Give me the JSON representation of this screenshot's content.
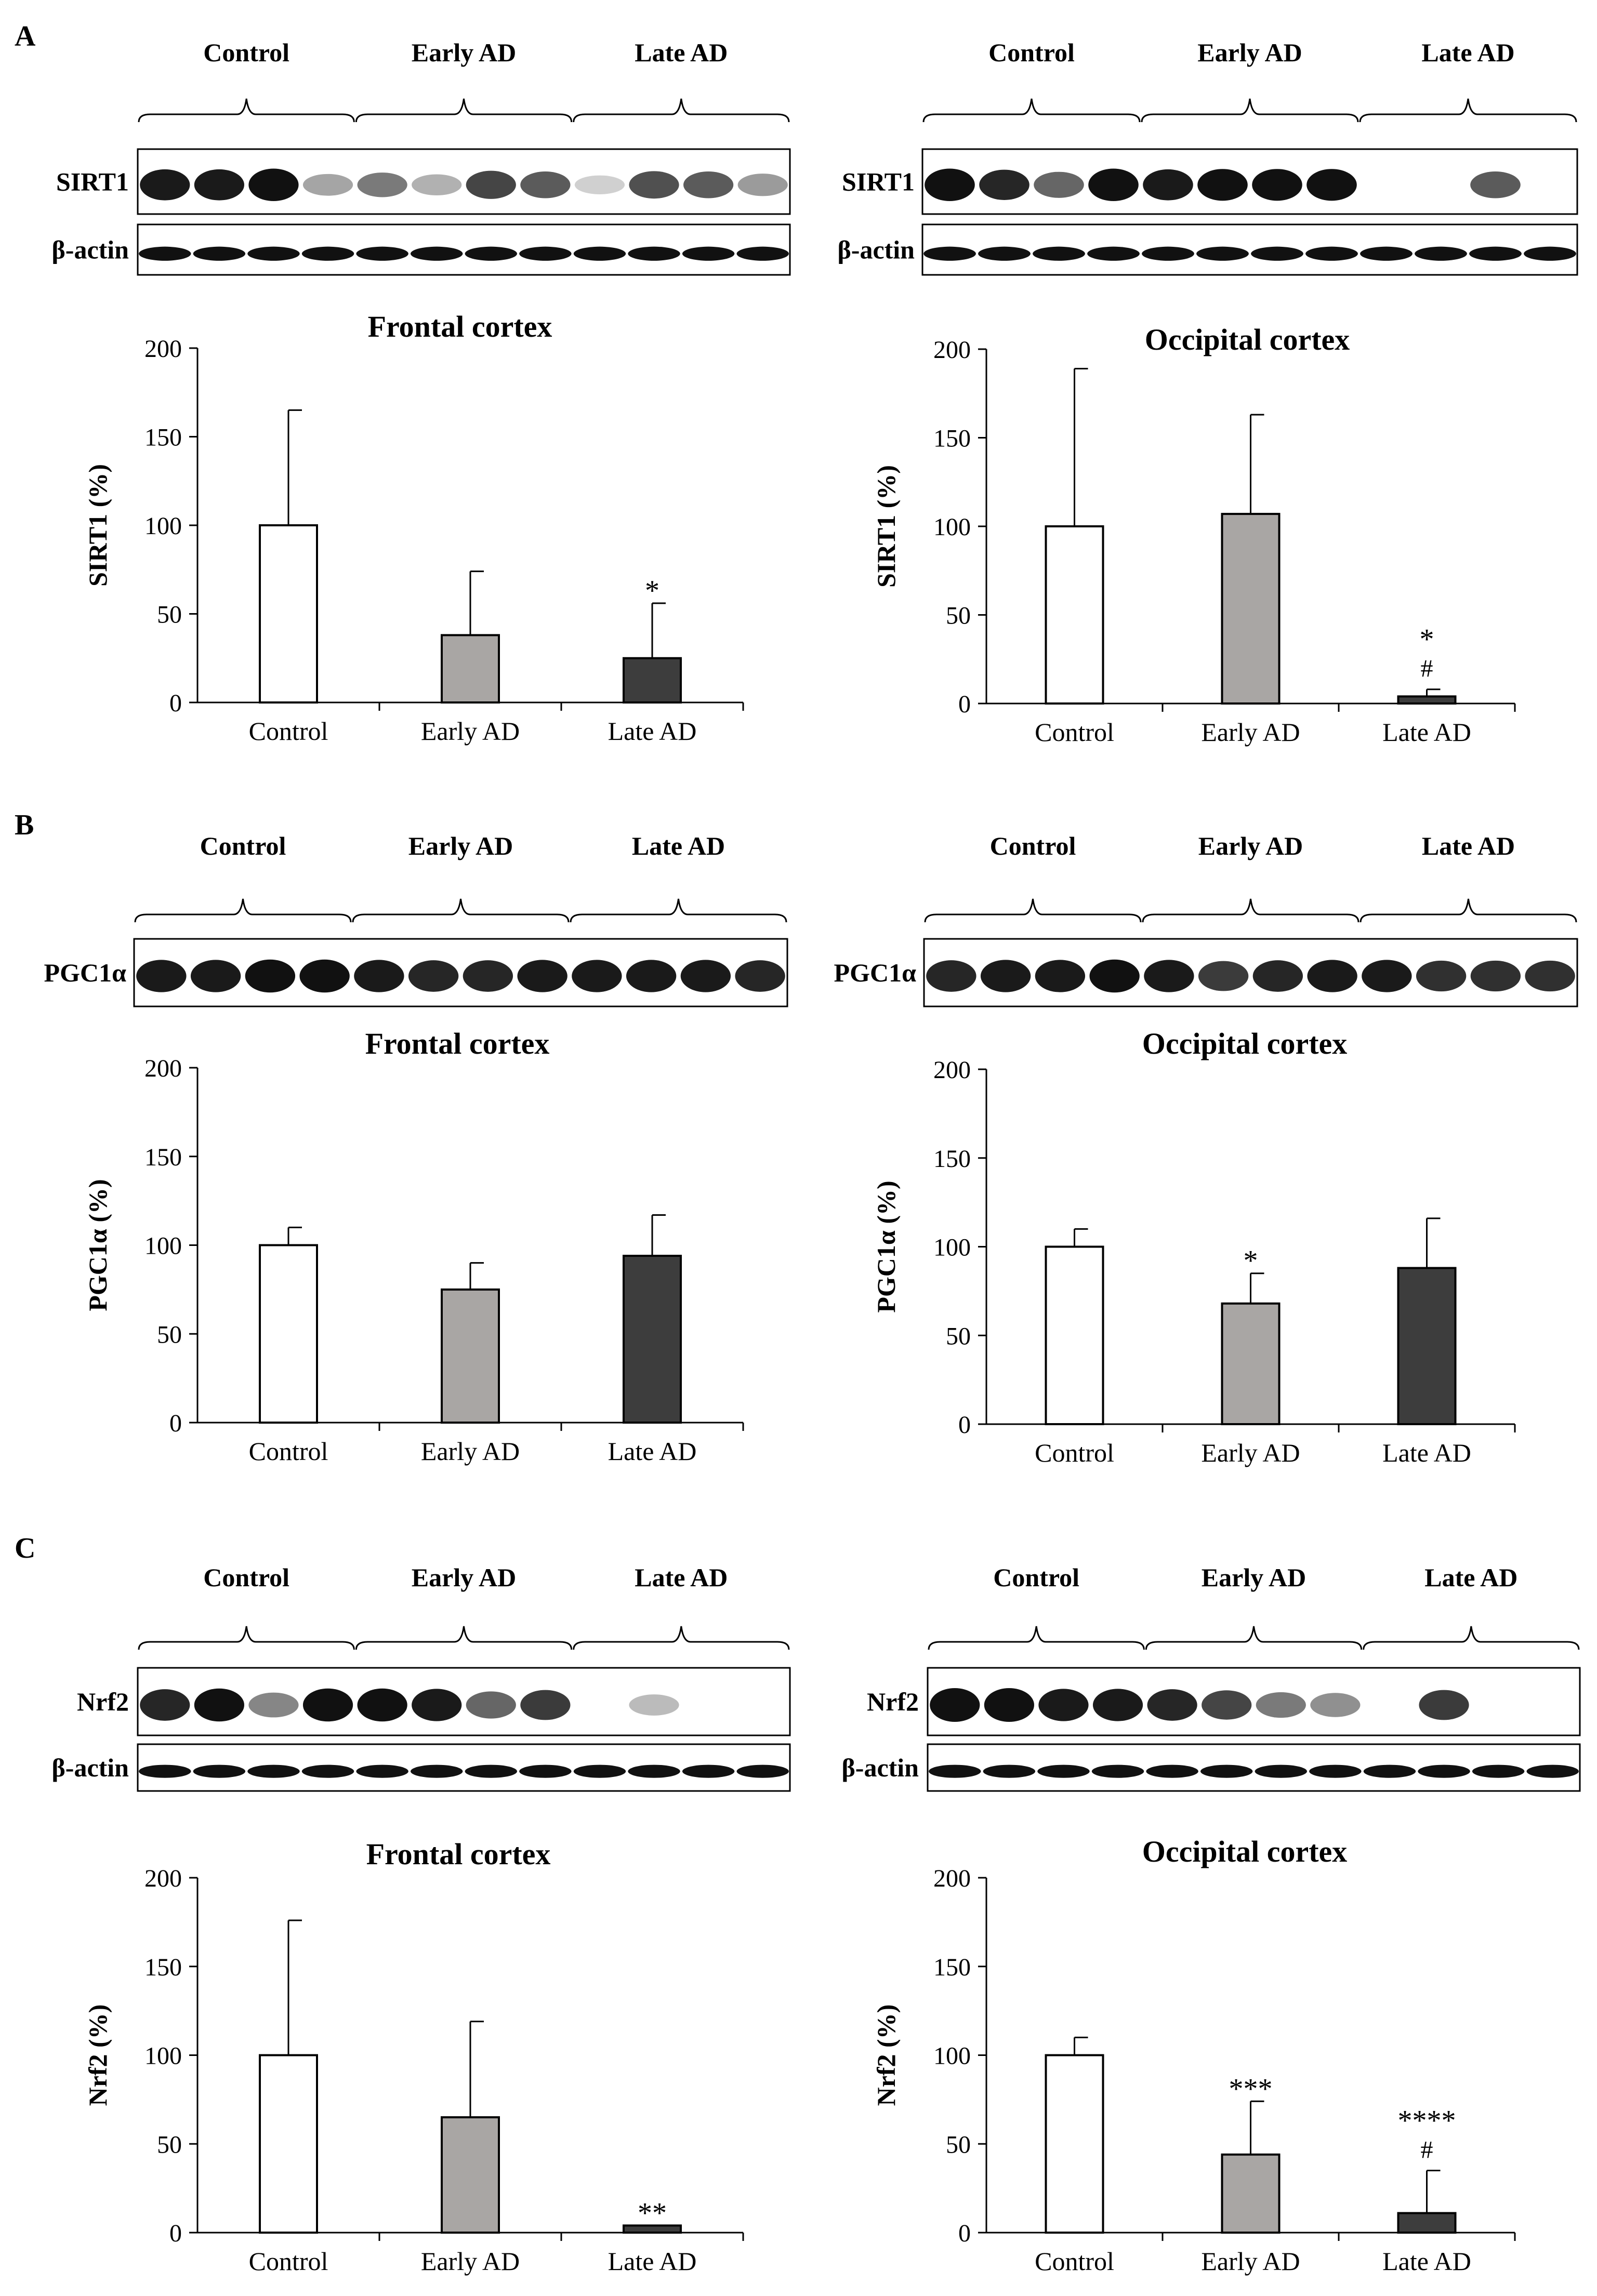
{
  "panels": [
    {
      "letter": "A",
      "protein": "SIRT1",
      "loading_control": "β-actin"
    },
    {
      "letter": "B",
      "protein": "PGC1α",
      "loading_control": ""
    },
    {
      "letter": "C",
      "protein": "Nrf2",
      "loading_control": "β-actin"
    }
  ],
  "groups": [
    "Control",
    "Early AD",
    "Late AD"
  ],
  "chart_data": [
    {
      "type": "bar",
      "panel": "A",
      "title": "Frontal cortex",
      "ylabel": "SIRT1 (%)",
      "categories": [
        "Control",
        "Early AD",
        "Late AD"
      ],
      "values": [
        100,
        38,
        25
      ],
      "errors": [
        65,
        36,
        31
      ],
      "annotations": [
        "",
        "",
        "*"
      ],
      "ylim": [
        0,
        200
      ],
      "yticks": [
        0,
        50,
        100,
        150,
        200
      ]
    },
    {
      "type": "bar",
      "panel": "A",
      "title": "Occipital cortex",
      "ylabel": "SIRT1 (%)",
      "categories": [
        "Control",
        "Early AD",
        "Late AD"
      ],
      "values": [
        100,
        107,
        4
      ],
      "errors": [
        89,
        56,
        4
      ],
      "annotations": [
        "",
        "",
        "*\n#"
      ],
      "ylim": [
        0,
        200
      ],
      "yticks": [
        0,
        50,
        100,
        150,
        200
      ]
    },
    {
      "type": "bar",
      "panel": "B",
      "title": "Frontal cortex",
      "ylabel": "PGC1α (%)",
      "categories": [
        "Control",
        "Early AD",
        "Late AD"
      ],
      "values": [
        100,
        75,
        94
      ],
      "errors": [
        10,
        15,
        23
      ],
      "annotations": [
        "",
        "",
        ""
      ],
      "ylim": [
        0,
        200
      ],
      "yticks": [
        0,
        50,
        100,
        150,
        200
      ]
    },
    {
      "type": "bar",
      "panel": "B",
      "title": "Occipital cortex",
      "ylabel": "PGC1α (%)",
      "categories": [
        "Control",
        "Early AD",
        "Late AD"
      ],
      "values": [
        100,
        68,
        88
      ],
      "errors": [
        10,
        17,
        28
      ],
      "annotations": [
        "",
        "*",
        ""
      ],
      "ylim": [
        0,
        200
      ],
      "yticks": [
        0,
        50,
        100,
        150,
        200
      ]
    },
    {
      "type": "bar",
      "panel": "C",
      "title": "Frontal cortex",
      "ylabel": "Nrf2 (%)",
      "categories": [
        "Control",
        "Early AD",
        "Late AD"
      ],
      "values": [
        100,
        65,
        4
      ],
      "errors": [
        76,
        54,
        0
      ],
      "annotations": [
        "",
        "",
        "**"
      ],
      "ylim": [
        0,
        200
      ],
      "yticks": [
        0,
        50,
        100,
        150,
        200
      ]
    },
    {
      "type": "bar",
      "panel": "C",
      "title": "Occipital cortex",
      "ylabel": "Nrf2 (%)",
      "categories": [
        "Control",
        "Early AD",
        "Late AD"
      ],
      "values": [
        100,
        44,
        11
      ],
      "errors": [
        10,
        30,
        24
      ],
      "annotations": [
        "",
        "***",
        "****\n#"
      ],
      "ylim": [
        0,
        200
      ],
      "yticks": [
        0,
        50,
        100,
        150,
        200
      ]
    }
  ],
  "colors": {
    "control": "#ffffff",
    "early_ad": "#a9a6a4",
    "late_ad": "#3d3d3d",
    "axis": "#000000",
    "blot_bg": "#ffffff",
    "band": "#111111"
  },
  "blots": [
    {
      "panel": "A",
      "side": "left",
      "protein": "SIRT1",
      "intensities": [
        0.9,
        0.9,
        1.0,
        0.25,
        0.45,
        0.2,
        0.7,
        0.6,
        0.05,
        0.65,
        0.6,
        0.3
      ],
      "has_actin": true
    },
    {
      "panel": "A",
      "side": "right",
      "protein": "SIRT1",
      "intensities": [
        1.0,
        0.85,
        0.55,
        1.0,
        0.9,
        0.95,
        0.95,
        0.95,
        0.0,
        0.0,
        0.6,
        0.0
      ],
      "has_actin": true
    },
    {
      "panel": "B",
      "side": "left",
      "protein": "PGC1α",
      "intensities": [
        0.9,
        0.9,
        0.95,
        0.95,
        0.9,
        0.85,
        0.85,
        0.9,
        0.9,
        0.9,
        0.9,
        0.85
      ],
      "has_actin": false
    },
    {
      "panel": "B",
      "side": "right",
      "protein": "PGC1α",
      "intensities": [
        0.85,
        0.9,
        0.9,
        0.95,
        0.9,
        0.75,
        0.85,
        0.9,
        0.9,
        0.8,
        0.8,
        0.8
      ],
      "has_actin": false
    },
    {
      "panel": "C",
      "side": "left",
      "protein": "Nrf2",
      "intensities": [
        0.85,
        0.95,
        0.4,
        0.95,
        0.95,
        0.9,
        0.55,
        0.75,
        0.0,
        0.15,
        0.0,
        0.0
      ],
      "has_actin": true
    },
    {
      "panel": "C",
      "side": "right",
      "protein": "Nrf2",
      "intensities": [
        1.0,
        1.0,
        0.9,
        0.9,
        0.85,
        0.7,
        0.45,
        0.35,
        0.0,
        0.75,
        0.0,
        0.0
      ],
      "has_actin": true
    }
  ]
}
